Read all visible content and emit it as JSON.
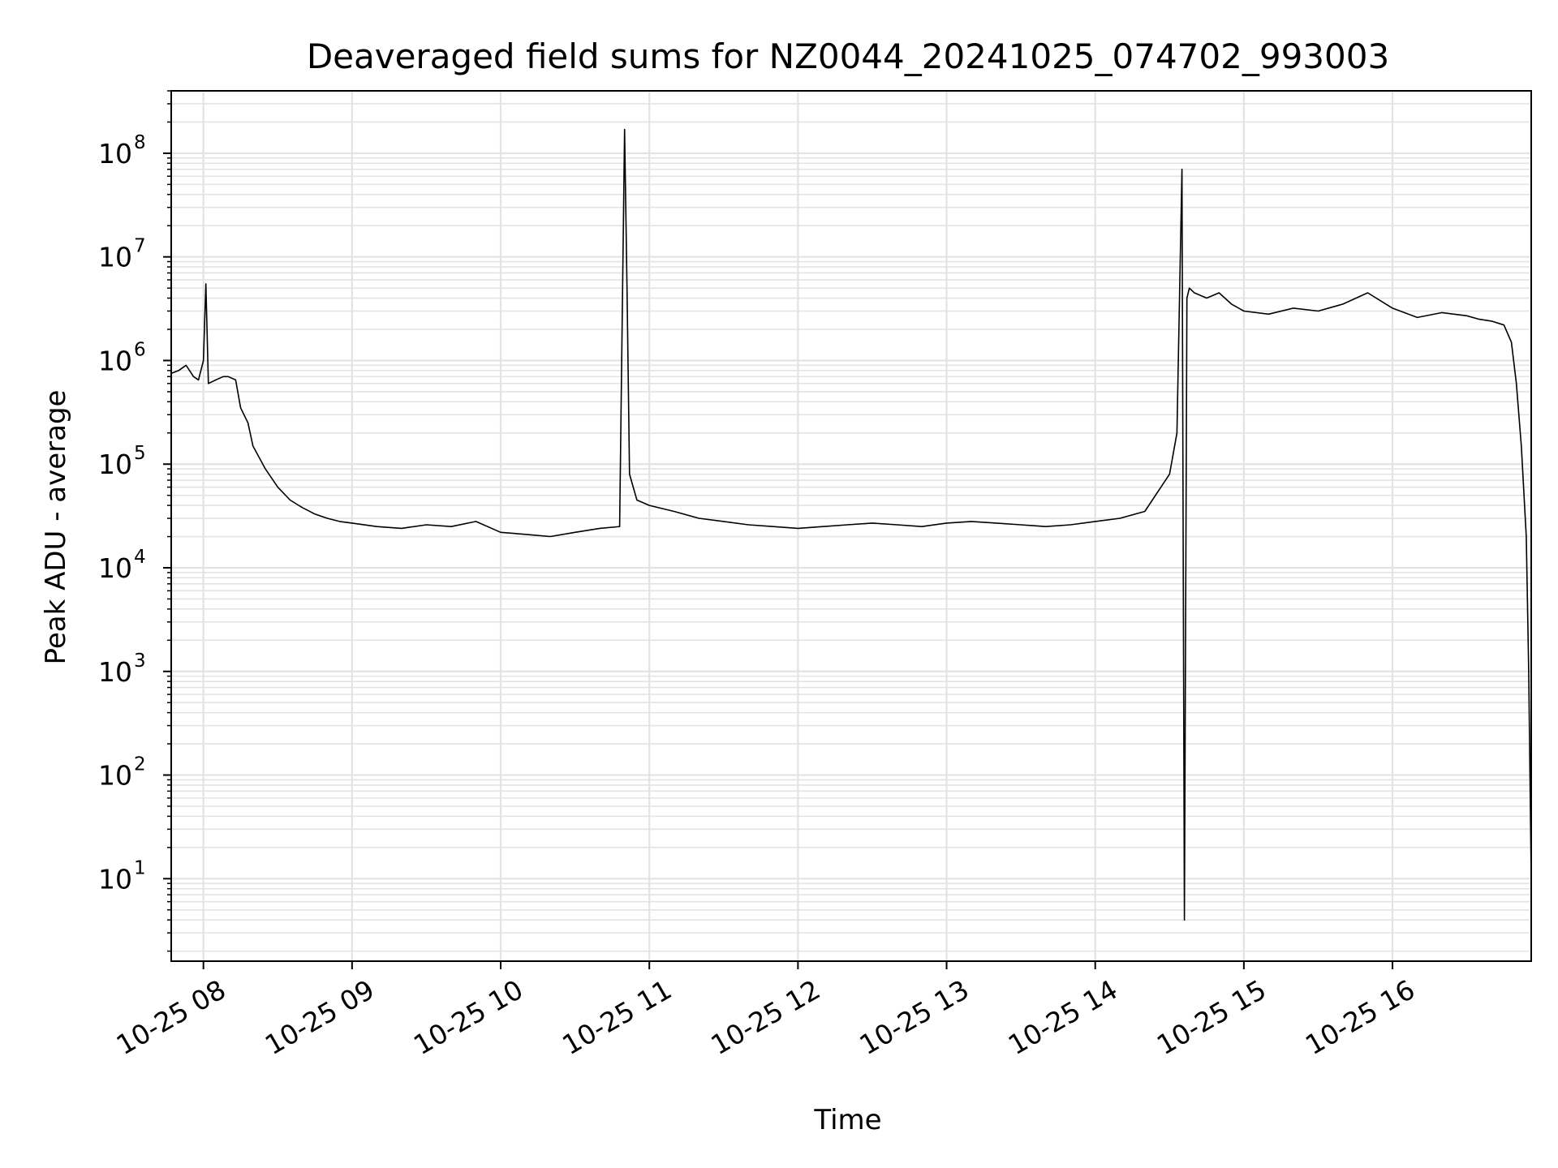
{
  "chart_data": {
    "type": "line",
    "title": "Deaveraged field sums for NZ0044_20241025_074702_993003",
    "xlabel": "Time",
    "ylabel": "Peak ADU - average",
    "yscale": "log",
    "grid": true,
    "line_color": "#000000",
    "grid_color": "#e3e3e3",
    "xlim": [
      "2024-10-25 07:47",
      "2024-10-25 16:56"
    ],
    "ylim": [
      1.6,
      400000000
    ],
    "x_ticks": [
      {
        "value": "2024-10-25 08:00",
        "label": "10-25 08"
      },
      {
        "value": "2024-10-25 09:00",
        "label": "10-25 09"
      },
      {
        "value": "2024-10-25 10:00",
        "label": "10-25 10"
      },
      {
        "value": "2024-10-25 11:00",
        "label": "10-25 11"
      },
      {
        "value": "2024-10-25 12:00",
        "label": "10-25 12"
      },
      {
        "value": "2024-10-25 13:00",
        "label": "10-25 13"
      },
      {
        "value": "2024-10-25 14:00",
        "label": "10-25 14"
      },
      {
        "value": "2024-10-25 15:00",
        "label": "10-25 15"
      },
      {
        "value": "2024-10-25 16:00",
        "label": "10-25 16"
      }
    ],
    "y_ticks": [
      {
        "value": 10,
        "base": "10",
        "exp": "1"
      },
      {
        "value": 100,
        "base": "10",
        "exp": "2"
      },
      {
        "value": 1000,
        "base": "10",
        "exp": "3"
      },
      {
        "value": 10000,
        "base": "10",
        "exp": "4"
      },
      {
        "value": 100000,
        "base": "10",
        "exp": "5"
      },
      {
        "value": 1000000,
        "base": "10",
        "exp": "6"
      },
      {
        "value": 10000000,
        "base": "10",
        "exp": "7"
      },
      {
        "value": 100000000,
        "base": "10",
        "exp": "8"
      }
    ],
    "series": [
      {
        "x": [
          "2024-10-25 07:47",
          "2024-10-25 07:50",
          "2024-10-25 07:53",
          "2024-10-25 07:56",
          "2024-10-25 07:58",
          "2024-10-25 08:00",
          "2024-10-25 08:01",
          "2024-10-25 08:02",
          "2024-10-25 08:05",
          "2024-10-25 08:08",
          "2024-10-25 08:10",
          "2024-10-25 08:13",
          "2024-10-25 08:15",
          "2024-10-25 08:18",
          "2024-10-25 08:20",
          "2024-10-25 08:25",
          "2024-10-25 08:30",
          "2024-10-25 08:35",
          "2024-10-25 08:40",
          "2024-10-25 08:45",
          "2024-10-25 08:50",
          "2024-10-25 08:55",
          "2024-10-25 09:00",
          "2024-10-25 09:10",
          "2024-10-25 09:20",
          "2024-10-25 09:30",
          "2024-10-25 09:40",
          "2024-10-25 09:50",
          "2024-10-25 10:00",
          "2024-10-25 10:10",
          "2024-10-25 10:20",
          "2024-10-25 10:30",
          "2024-10-25 10:40",
          "2024-10-25 10:48",
          "2024-10-25 10:50",
          "2024-10-25 10:51",
          "2024-10-25 10:52",
          "2024-10-25 10:55",
          "2024-10-25 11:00",
          "2024-10-25 11:10",
          "2024-10-25 11:20",
          "2024-10-25 11:30",
          "2024-10-25 11:40",
          "2024-10-25 11:50",
          "2024-10-25 12:00",
          "2024-10-25 12:10",
          "2024-10-25 12:20",
          "2024-10-25 12:30",
          "2024-10-25 12:40",
          "2024-10-25 12:50",
          "2024-10-25 13:00",
          "2024-10-25 13:10",
          "2024-10-25 13:20",
          "2024-10-25 13:30",
          "2024-10-25 13:40",
          "2024-10-25 13:50",
          "2024-10-25 14:00",
          "2024-10-25 14:10",
          "2024-10-25 14:20",
          "2024-10-25 14:30",
          "2024-10-25 14:33",
          "2024-10-25 14:35",
          "2024-10-25 14:36",
          "2024-10-25 14:37",
          "2024-10-25 14:38",
          "2024-10-25 14:40",
          "2024-10-25 14:45",
          "2024-10-25 14:50",
          "2024-10-25 14:55",
          "2024-10-25 15:00",
          "2024-10-25 15:10",
          "2024-10-25 15:20",
          "2024-10-25 15:30",
          "2024-10-25 15:40",
          "2024-10-25 15:50",
          "2024-10-25 16:00",
          "2024-10-25 16:10",
          "2024-10-25 16:20",
          "2024-10-25 16:30",
          "2024-10-25 16:35",
          "2024-10-25 16:40",
          "2024-10-25 16:45",
          "2024-10-25 16:48",
          "2024-10-25 16:50",
          "2024-10-25 16:52",
          "2024-10-25 16:54",
          "2024-10-25 16:55",
          "2024-10-25 16:56"
        ],
        "y": [
          750000,
          800000,
          900000,
          700000,
          650000,
          1000000,
          5500000,
          600000,
          650000,
          700000,
          700000,
          650000,
          350000,
          250000,
          150000,
          90000,
          60000,
          45000,
          38000,
          33000,
          30000,
          28000,
          27000,
          25000,
          24000,
          26000,
          25000,
          28000,
          22000,
          21000,
          20000,
          22000,
          24000,
          25000,
          170000000,
          5000000,
          80000,
          45000,
          40000,
          35000,
          30000,
          28000,
          26000,
          25000,
          24000,
          25000,
          26000,
          27000,
          26000,
          25000,
          27000,
          28000,
          27000,
          26000,
          25000,
          26000,
          28000,
          30000,
          35000,
          80000,
          200000,
          70000000,
          4,
          4000000,
          5000000,
          4500000,
          4000000,
          4500000,
          3500000,
          3000000,
          2800000,
          3200000,
          3000000,
          3500000,
          4500000,
          3200000,
          2600000,
          2900000,
          2700000,
          2500000,
          2400000,
          2200000,
          1500000,
          600000,
          150000,
          20000,
          1000,
          10
        ]
      }
    ]
  }
}
